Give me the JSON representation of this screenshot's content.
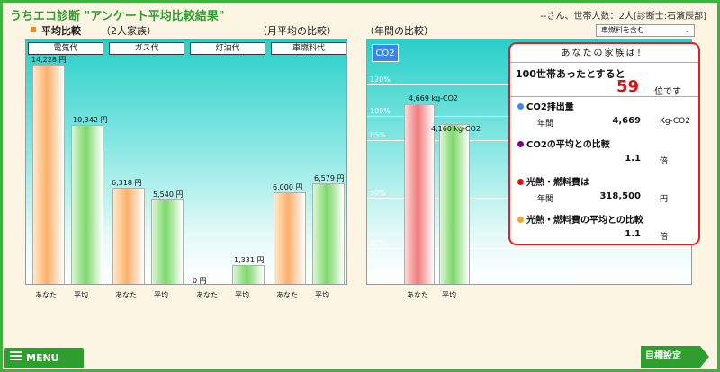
{
  "app": {
    "title": "うちエコ診断  \"アンケート平均比較結果\"",
    "user_info": "--さん、世帯人数：2人[診断士:石濱辰部]"
  },
  "left_section": {
    "label": "平均比較",
    "household": "（2人家族）",
    "period": "（月平均の比較）",
    "categories": [
      "電気代",
      "ガス代",
      "灯油代",
      "車燃料代"
    ],
    "bar_labels": [
      "あなた",
      "平均",
      "あなた",
      "平均",
      "あなた",
      "平均",
      "あなた",
      "平均"
    ],
    "value_labels": [
      "14,228 円",
      "10,342 円",
      "6,318 円",
      "5,540 円",
      "0 円",
      "1,331 円",
      "6,000 円",
      "6,579 円"
    ]
  },
  "right_section": {
    "period": "（年間の比較）",
    "co2_badge": "CO2",
    "select_value": "車燃料を含む",
    "select_arrow": "⌄",
    "percent_lines": [
      "120%",
      "100%",
      "85%",
      "50%",
      "20%"
    ],
    "bar_labels": [
      "あなた",
      "平均"
    ],
    "value_labels": [
      "4,669 kg-CO2",
      "4,160 kg-CO2"
    ]
  },
  "result_card": {
    "header": "あなたの家族は！",
    "rank_lead": "100世帯あったとすると",
    "rank_value": "59",
    "rank_unit": "位です",
    "rows": [
      {
        "title": "CO2排出量",
        "sub": "年間",
        "value": "4,669",
        "unit": "Kg-CO2"
      },
      {
        "title": "CO2の平均との比較",
        "sub": "",
        "value": "1.1",
        "unit": "倍"
      },
      {
        "title": "光熱・燃料費は",
        "sub": "年間",
        "value": "318,500",
        "unit": "円"
      },
      {
        "title": "光熱・燃料費の平均との比較",
        "sub": "",
        "value": "1.1",
        "unit": "倍"
      }
    ],
    "dot_colors": [
      "#3a8ee6",
      "#800080",
      "#e01010",
      "#f5a623"
    ]
  },
  "chart_data": [
    {
      "type": "bar",
      "categories": [
        "電気代",
        "ガス代",
        "灯油代",
        "車燃料代"
      ],
      "series": [
        {
          "name": "あなた",
          "values": [
            14228,
            6318,
            0,
            6000
          ]
        },
        {
          "name": "平均",
          "values": [
            10342,
            5540,
            1331,
            6579
          ]
        }
      ],
      "ylabel": "円",
      "ylim": [
        0,
        16000
      ]
    },
    {
      "type": "bar",
      "categories": [
        "あなた",
        "平均"
      ],
      "values": [
        4669,
        4160
      ],
      "ylabel": "kg-CO2",
      "ylim": [
        0,
        4669
      ]
    }
  ],
  "buttons": {
    "menu": "MENU",
    "goal": "目標設定"
  },
  "colors": {
    "accent_green": "#2e9e2e",
    "title_green": "#2f9e2f",
    "rank_red": "#e01010"
  }
}
